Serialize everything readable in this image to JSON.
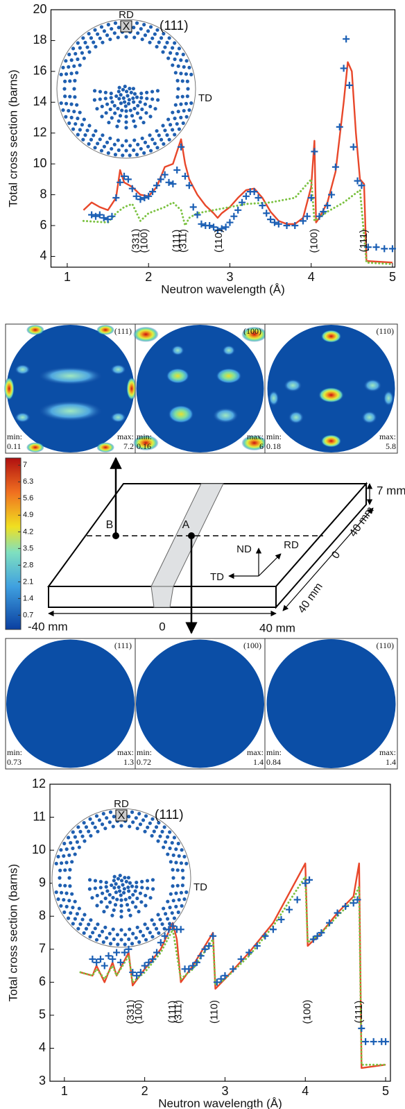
{
  "chart_data": [
    {
      "type": "line",
      "xlabel": "Neutron wavelength (Å)",
      "ylabel": "Total cross section (barns)",
      "xlim": [
        0.8,
        5.03
      ],
      "ylim": [
        3.3,
        20
      ],
      "xticks": [
        1,
        2,
        3,
        4,
        5
      ],
      "yticks": [
        4,
        6,
        8,
        10,
        12,
        14,
        16,
        18,
        20
      ],
      "series": [
        {
          "color": "#e8472a",
          "mode": "line",
          "x": [
            1.2,
            1.3,
            1.4,
            1.5,
            1.6,
            1.65,
            1.7,
            1.8,
            1.9,
            2.0,
            2.1,
            2.2,
            2.3,
            2.35,
            2.4,
            2.45,
            2.5,
            2.6,
            2.7,
            2.8,
            2.85,
            2.9,
            3.0,
            3.1,
            3.2,
            3.3,
            3.4,
            3.5,
            3.6,
            3.7,
            3.8,
            3.9,
            4.0,
            4.04,
            4.06,
            4.1,
            4.2,
            4.3,
            4.4,
            4.45,
            4.5,
            4.55,
            4.6,
            4.65,
            4.68,
            5.0
          ],
          "values": [
            7.0,
            7.5,
            7.2,
            7.0,
            7.8,
            9.6,
            8.8,
            8.5,
            8.0,
            7.9,
            8.5,
            9.8,
            10.0,
            10.8,
            11.6,
            10.0,
            9.0,
            8.0,
            7.3,
            6.8,
            6.5,
            6.8,
            7.2,
            7.8,
            8.3,
            8.4,
            7.8,
            6.9,
            6.3,
            6.1,
            6.1,
            6.5,
            8.5,
            11.5,
            6.2,
            6.5,
            7.5,
            9.5,
            14.0,
            16.6,
            16.0,
            12.0,
            9.0,
            8.7,
            3.7,
            3.6
          ]
        },
        {
          "color": "#7cc242",
          "mode": "dotted",
          "x": [
            1.2,
            1.5,
            1.6,
            1.7,
            1.8,
            1.9,
            2.0,
            2.1,
            2.2,
            2.3,
            2.4,
            2.45,
            2.5,
            2.6,
            2.8,
            3.0,
            3.2,
            3.5,
            3.8,
            4.0,
            4.04,
            4.2,
            4.4,
            4.6,
            4.68,
            5.0
          ],
          "values": [
            6.3,
            6.2,
            6.8,
            7.2,
            7.4,
            6.3,
            6.8,
            7.0,
            7.2,
            7.5,
            7.0,
            6.0,
            6.5,
            6.8,
            7.0,
            7.2,
            7.4,
            7.5,
            7.8,
            9.0,
            6.3,
            6.9,
            7.5,
            8.3,
            3.6,
            3.5
          ]
        },
        {
          "color": "#1b5fb4",
          "mode": "markers",
          "x": [
            1.3,
            1.35,
            1.4,
            1.45,
            1.5,
            1.55,
            1.6,
            1.65,
            1.7,
            1.75,
            1.8,
            1.85,
            1.9,
            1.95,
            2.0,
            2.05,
            2.1,
            2.15,
            2.2,
            2.25,
            2.3,
            2.35,
            2.4,
            2.45,
            2.5,
            2.55,
            2.6,
            2.65,
            2.7,
            2.75,
            2.8,
            2.85,
            2.9,
            2.95,
            3.0,
            3.05,
            3.1,
            3.15,
            3.2,
            3.25,
            3.3,
            3.35,
            3.4,
            3.45,
            3.5,
            3.55,
            3.6,
            3.7,
            3.8,
            3.9,
            3.95,
            4.0,
            4.04,
            4.1,
            4.15,
            4.2,
            4.25,
            4.3,
            4.35,
            4.4,
            4.43,
            4.47,
            4.52,
            4.57,
            4.62,
            4.7,
            4.8,
            4.9,
            5.0
          ],
          "values": [
            6.7,
            6.6,
            6.7,
            6.5,
            6.4,
            6.6,
            7.8,
            8.8,
            9.2,
            9.0,
            8.4,
            7.9,
            7.7,
            7.8,
            7.9,
            8.2,
            8.6,
            9.0,
            9.3,
            8.8,
            8.7,
            9.6,
            11.1,
            9.2,
            8.6,
            7.2,
            6.7,
            6.1,
            6.0,
            6.0,
            5.9,
            5.7,
            5.8,
            5.9,
            6.2,
            6.6,
            7.0,
            7.5,
            7.9,
            8.2,
            8.2,
            7.8,
            7.3,
            6.8,
            6.4,
            6.2,
            6.1,
            6.0,
            6.0,
            6.3,
            6.6,
            7.8,
            10.8,
            6.6,
            6.9,
            7.3,
            8.0,
            9.8,
            12.4,
            16.2,
            18.1,
            15.1,
            11.1,
            8.9,
            8.6,
            4.6,
            4.6,
            4.5,
            4.5
          ]
        }
      ],
      "annotations": [
        {
          "text": "(331)",
          "x": 1.85
        },
        {
          "text": "(100)",
          "x": 1.95
        },
        {
          "text": "(111)",
          "x": 2.35
        },
        {
          "text": "(311)",
          "x": 2.43
        },
        {
          "text": "(110)",
          "x": 2.87
        },
        {
          "text": "(100)",
          "x": 4.04
        },
        {
          "text": "(111)",
          "x": 4.65
        }
      ],
      "inset": {
        "rd": "RD",
        "x_mark": "X",
        "label": "(111)",
        "td": "TD"
      }
    },
    {
      "type": "line",
      "xlabel": "Neutron wavelength (Å)",
      "ylabel": "Total cross section (barns)",
      "xlim": [
        0.82,
        5.06
      ],
      "ylim": [
        3,
        12
      ],
      "xticks": [
        1,
        2,
        3,
        4,
        5
      ],
      "yticks": [
        3,
        4,
        5,
        6,
        7,
        8,
        9,
        10,
        11,
        12
      ],
      "series": [
        {
          "color": "#e8472a",
          "mode": "line",
          "x": [
            1.2,
            1.35,
            1.4,
            1.5,
            1.6,
            1.65,
            1.8,
            1.85,
            2.0,
            2.2,
            2.35,
            2.4,
            2.45,
            2.6,
            2.85,
            2.88,
            3.0,
            3.3,
            3.6,
            4.0,
            4.03,
            4.2,
            4.4,
            4.6,
            4.67,
            4.7,
            5.0
          ],
          "values": [
            6.3,
            6.2,
            6.5,
            6.0,
            6.6,
            6.2,
            6.9,
            5.9,
            6.4,
            7.0,
            7.8,
            7.3,
            6.0,
            6.5,
            7.5,
            5.8,
            6.1,
            6.9,
            7.8,
            9.6,
            7.1,
            7.5,
            8.1,
            8.6,
            9.6,
            3.4,
            3.5
          ]
        },
        {
          "color": "#7cc242",
          "mode": "dotted",
          "x": [
            1.2,
            1.35,
            1.4,
            1.5,
            1.6,
            1.65,
            1.8,
            1.85,
            2.0,
            2.2,
            2.35,
            2.45,
            2.6,
            2.85,
            2.88,
            3.0,
            3.3,
            3.6,
            4.0,
            4.03,
            4.2,
            4.4,
            4.6,
            4.67,
            4.7,
            5.0
          ],
          "values": [
            6.3,
            6.2,
            6.4,
            6.1,
            6.5,
            6.2,
            6.8,
            6.0,
            6.3,
            6.9,
            7.6,
            6.1,
            6.4,
            7.3,
            5.9,
            6.1,
            6.8,
            7.7,
            9.2,
            7.2,
            7.5,
            8.0,
            8.5,
            8.9,
            3.5,
            3.5
          ]
        },
        {
          "color": "#1b5fb4",
          "mode": "markers",
          "x": [
            1.35,
            1.4,
            1.45,
            1.5,
            1.55,
            1.6,
            1.65,
            1.7,
            1.75,
            1.8,
            1.85,
            1.9,
            1.95,
            2.0,
            2.05,
            2.1,
            2.15,
            2.2,
            2.25,
            2.3,
            2.35,
            2.4,
            2.45,
            2.5,
            2.55,
            2.6,
            2.65,
            2.7,
            2.75,
            2.8,
            2.85,
            2.9,
            2.95,
            3.0,
            3.1,
            3.2,
            3.3,
            3.4,
            3.5,
            3.6,
            3.7,
            3.8,
            3.9,
            4.0,
            4.05,
            4.1,
            4.15,
            4.2,
            4.3,
            4.4,
            4.5,
            4.6,
            4.65,
            4.7,
            4.75,
            4.85,
            4.95,
            5.0
          ],
          "values": [
            6.7,
            6.6,
            6.7,
            6.5,
            6.8,
            6.7,
            6.9,
            6.6,
            6.9,
            7.0,
            6.3,
            6.2,
            6.3,
            6.5,
            6.6,
            6.7,
            6.9,
            7.2,
            7.4,
            7.6,
            7.7,
            7.6,
            7.6,
            6.4,
            6.4,
            6.5,
            6.6,
            6.8,
            7.0,
            7.1,
            7.4,
            6.0,
            6.1,
            6.2,
            6.4,
            6.7,
            6.9,
            7.1,
            7.4,
            7.6,
            7.9,
            8.2,
            8.5,
            9.0,
            9.1,
            7.3,
            7.4,
            7.5,
            7.8,
            8.1,
            8.3,
            8.4,
            8.5,
            4.6,
            4.2,
            4.2,
            4.2,
            4.2
          ]
        }
      ],
      "annotations": [
        {
          "text": "(331)",
          "x": 1.83
        },
        {
          "text": "(100)",
          "x": 1.93
        },
        {
          "text": "(111)",
          "x": 2.35
        },
        {
          "text": "(311)",
          "x": 2.42
        },
        {
          "text": "(110)",
          "x": 2.87
        },
        {
          "text": "(100)",
          "x": 4.03
        },
        {
          "text": "(111)",
          "x": 4.67
        }
      ],
      "inset": {
        "rd": "RD",
        "x_mark": "X",
        "label": "(111)",
        "td": "TD"
      }
    }
  ],
  "pole_figures": [
    {
      "panels": [
        {
          "label": "(111)",
          "min_label": "min:",
          "min": 0.11,
          "max_label": "max:",
          "max": 7.2
        },
        {
          "label": "(100)",
          "min_label": "min:",
          "min": 0.16,
          "max_label": "max:",
          "max": 6
        },
        {
          "label": "(110)",
          "min_label": "min:",
          "min": 0.18,
          "max_label": "max:",
          "max": 5.8
        }
      ]
    },
    {
      "panels": [
        {
          "label": "(111)",
          "min_label": "min:",
          "min": 0.73,
          "max_label": "max:",
          "max": 1.3
        },
        {
          "label": "(100)",
          "min_label": "min:",
          "min": 0.72,
          "max_label": "max:",
          "max": 1.4
        },
        {
          "label": "(110)",
          "min_label": "min:",
          "min": 0.84,
          "max_label": "max:",
          "max": 1.4
        }
      ]
    }
  ],
  "colorbar": {
    "lim": [
      0.1,
      7.3
    ],
    "ticks": [
      0.7,
      1.4,
      2.1,
      2.8,
      3.5,
      4.2,
      4.9,
      5.6,
      6.3,
      7
    ]
  },
  "diagram": {
    "point_b": "B",
    "point_a": "A",
    "nd": "ND",
    "rd": "RD",
    "td": "TD",
    "thickness": "7 mm",
    "side_far": "40 mm",
    "side_zero": "0",
    "side_near": "40 mm",
    "x_min": "-40 mm",
    "x_zero": "0",
    "x_max": "40 mm"
  }
}
